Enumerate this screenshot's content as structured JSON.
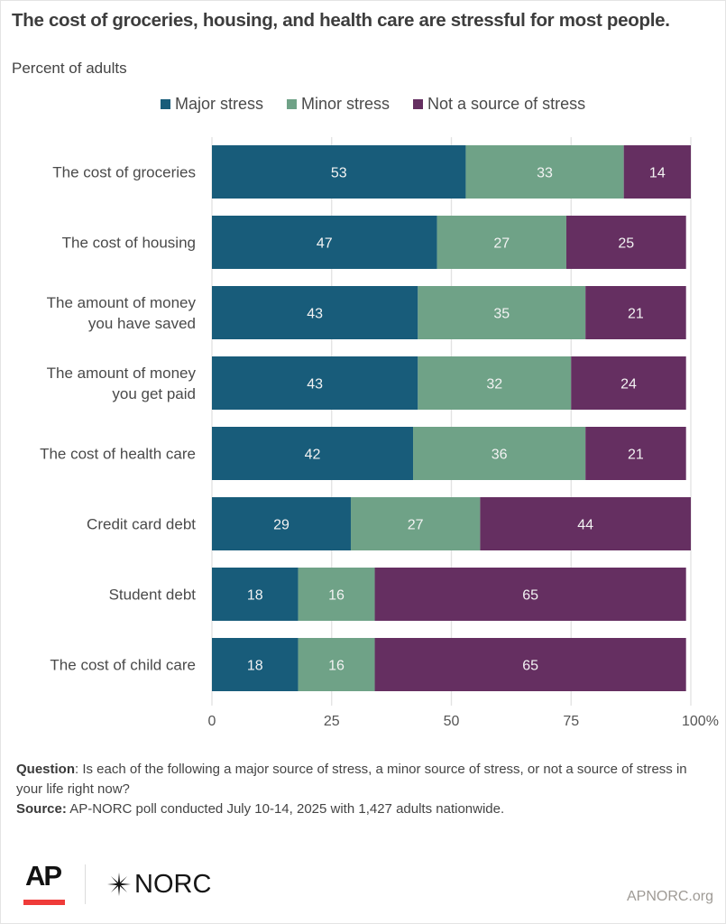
{
  "header": {
    "title": "The cost of groceries, housing, and health care are stressful for most people.",
    "subtitle": "Percent of adults"
  },
  "legend": [
    {
      "label": "Major stress",
      "color": "#185c7a"
    },
    {
      "label": "Minor stress",
      "color": "#6fa287"
    },
    {
      "label": "Not a source of stress",
      "color": "#652f61"
    }
  ],
  "chart_data": {
    "type": "bar",
    "orientation": "horizontal",
    "stacked": true,
    "title": "The cost of groceries, housing, and health care are stressful for most people.",
    "subtitle": "Percent of adults",
    "xlabel": "",
    "ylabel": "",
    "xlim": [
      0,
      100
    ],
    "x_ticks": [
      "0",
      "25",
      "50",
      "75",
      "100%"
    ],
    "x_tick_values": [
      0,
      25,
      50,
      75,
      100
    ],
    "grid": true,
    "legend_position": "top",
    "categories": [
      "The cost of groceries",
      "The cost of housing",
      "The amount of money you have saved",
      "The amount of money you get paid",
      "The cost of health care",
      "Credit card debt",
      "Student debt",
      "The cost of child care"
    ],
    "category_lines": [
      [
        "The cost of groceries"
      ],
      [
        "The cost of housing"
      ],
      [
        "The amount of money",
        "you have saved"
      ],
      [
        "The amount of money",
        "you get paid"
      ],
      [
        "The cost of health care"
      ],
      [
        "Credit card debt"
      ],
      [
        "Student debt"
      ],
      [
        "The cost of child care"
      ]
    ],
    "series": [
      {
        "name": "Major stress",
        "color": "#185c7a",
        "values": [
          53,
          47,
          43,
          43,
          42,
          29,
          18,
          18
        ]
      },
      {
        "name": "Minor stress",
        "color": "#6fa287",
        "values": [
          33,
          27,
          35,
          32,
          36,
          27,
          16,
          16
        ]
      },
      {
        "name": "Not a source of stress",
        "color": "#652f61",
        "values": [
          14,
          25,
          21,
          24,
          21,
          44,
          65,
          65
        ]
      }
    ]
  },
  "footer": {
    "question_label": "Question",
    "question_text": ": Is each of the following a major source of stress, a minor source of stress, or not a source of stress in your life right now?",
    "source_label": "Source:",
    "source_text": " AP-NORC poll conducted July 10-14, 2025 with 1,427 adults nationwide.",
    "ap_logo": "AP",
    "norc_logo": "NORC",
    "site": "APNORC.org"
  }
}
